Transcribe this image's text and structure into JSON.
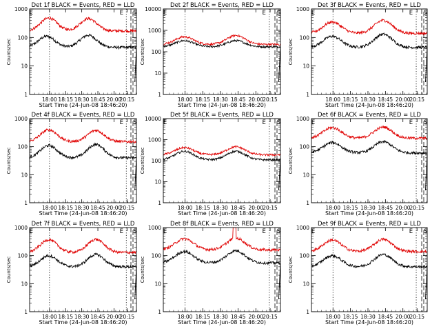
{
  "chart_data": [
    {
      "type": "line",
      "title": "Det 1f BLACK = Events, RED = LLD",
      "xlabel": "Start Time (24-Jun-08 18:46:20)",
      "ylabel": "Counts/sec",
      "ylim": [
        1,
        1000
      ],
      "yscale": "log",
      "x_tick_labels": [
        "18:00",
        "18:15",
        "18:30",
        "18:45",
        "20:00",
        "20:15"
      ],
      "y_tick_labels": [
        "1",
        "10",
        "100",
        "1000"
      ],
      "markers": [
        "E",
        "E",
        "S"
      ],
      "series": [
        {
          "color": "#000000",
          "level": 45,
          "peaks": [
            [
              0.16,
              110
            ],
            [
              0.55,
              120
            ]
          ]
        },
        {
          "color": "#e00000",
          "level": 170,
          "peaks": [
            [
              0.18,
              480
            ],
            [
              0.55,
              460
            ]
          ]
        }
      ]
    },
    {
      "type": "line",
      "title": "Det 2f BLACK = Events, RED = LLD",
      "xlabel": "Start Time (24-Jun-08 18:46:20)",
      "ylabel": "Counts/sec",
      "ylim": [
        1,
        10000
      ],
      "yscale": "log",
      "x_tick_labels": [
        "18:00",
        "18:15",
        "18:30",
        "18:45",
        "20:00",
        "20:15"
      ],
      "y_tick_labels": [
        "1",
        "10",
        "100",
        "1000",
        "10000"
      ],
      "markers": [
        "E",
        "E",
        "S"
      ],
      "series": [
        {
          "color": "#000000",
          "level": 170,
          "peaks": [
            [
              0.18,
              330
            ],
            [
              0.62,
              330
            ]
          ]
        },
        {
          "color": "#e00000",
          "level": 220,
          "peaks": [
            [
              0.18,
              500
            ],
            [
              0.62,
              580
            ]
          ]
        }
      ]
    },
    {
      "type": "line",
      "title": "Det 3f BLACK = Events, RED = LLD",
      "xlabel": "Start Time (24-Jun-08 18:46:20)",
      "ylabel": "Counts/sec",
      "ylim": [
        1,
        1000
      ],
      "yscale": "log",
      "x_tick_labels": [
        "18:00",
        "18:15",
        "18:30",
        "18:45",
        "20:00",
        "20:15"
      ],
      "y_tick_labels": [
        "1",
        "10",
        "100",
        "1000"
      ],
      "markers": [
        "E",
        "E",
        "S"
      ],
      "series": [
        {
          "color": "#000000",
          "level": 45,
          "peaks": [
            [
              0.18,
              110
            ],
            [
              0.62,
              130
            ]
          ]
        },
        {
          "color": "#e00000",
          "level": 140,
          "peaks": [
            [
              0.18,
              350
            ],
            [
              0.62,
              400
            ]
          ]
        }
      ]
    },
    {
      "type": "line",
      "title": "Det 4f BLACK = Events, RED = LLD",
      "xlabel": "Start Time (24-Jun-08 18:46:20)",
      "ylabel": "Counts/sec",
      "ylim": [
        1,
        1000
      ],
      "yscale": "log",
      "x_tick_labels": [
        "18:00",
        "18:15",
        "18:30",
        "18:45",
        "20:00",
        "20:15"
      ],
      "y_tick_labels": [
        "1",
        "10",
        "100",
        "1000"
      ],
      "markers": [
        "E",
        "E",
        "S"
      ],
      "series": [
        {
          "color": "#000000",
          "level": 40,
          "peaks": [
            [
              0.18,
              110
            ],
            [
              0.62,
              120
            ]
          ]
        },
        {
          "color": "#e00000",
          "level": 150,
          "peaks": [
            [
              0.18,
              400
            ],
            [
              0.62,
              380
            ]
          ]
        }
      ]
    },
    {
      "type": "line",
      "title": "Det 5f BLACK = Events, RED = LLD",
      "xlabel": "Start Time (24-Jun-08 18:46:20)",
      "ylabel": "Counts/sec",
      "ylim": [
        1,
        10000
      ],
      "yscale": "log",
      "x_tick_labels": [
        "18:00",
        "18:15",
        "18:30",
        "18:45",
        "20:00",
        "20:15"
      ],
      "y_tick_labels": [
        "1",
        "10",
        "100",
        "1000",
        "10000"
      ],
      "markers": [
        "E",
        "E",
        "S"
      ],
      "series": [
        {
          "color": "#000000",
          "level": 110,
          "peaks": [
            [
              0.18,
              280
            ],
            [
              0.62,
              280
            ]
          ]
        },
        {
          "color": "#e00000",
          "level": 190,
          "peaks": [
            [
              0.18,
              420
            ],
            [
              0.62,
              460
            ]
          ]
        }
      ]
    },
    {
      "type": "line",
      "title": "Det 6f BLACK = Events, RED = LLD",
      "xlabel": "Start Time (24-Jun-08 18:46:20)",
      "ylabel": "Counts/sec",
      "ylim": [
        1,
        1000
      ],
      "yscale": "log",
      "x_tick_labels": [
        "18:00",
        "18:15",
        "18:30",
        "18:45",
        "20:00",
        "20:15"
      ],
      "y_tick_labels": [
        "1",
        "10",
        "100",
        "1000"
      ],
      "markers": [
        "E",
        "E",
        "S"
      ],
      "series": [
        {
          "color": "#000000",
          "level": 60,
          "peaks": [
            [
              0.18,
              140
            ],
            [
              0.62,
              150
            ]
          ]
        },
        {
          "color": "#e00000",
          "level": 200,
          "peaks": [
            [
              0.18,
              480
            ],
            [
              0.62,
              500
            ]
          ]
        }
      ]
    },
    {
      "type": "line",
      "title": "Det 7f BLACK = Events, RED = LLD",
      "xlabel": "Start Time (24-Jun-08 18:46:20)",
      "ylabel": "Counts/sec",
      "ylim": [
        1,
        1000
      ],
      "yscale": "log",
      "x_tick_labels": [
        "18:00",
        "18:15",
        "18:30",
        "18:45",
        "20:00",
        "20:15"
      ],
      "y_tick_labels": [
        "1",
        "10",
        "100",
        "1000"
      ],
      "markers": [
        "E",
        "E",
        "S"
      ],
      "series": [
        {
          "color": "#000000",
          "level": 40,
          "peaks": [
            [
              0.18,
              100
            ],
            [
              0.62,
              110
            ]
          ]
        },
        {
          "color": "#e00000",
          "level": 130,
          "peaks": [
            [
              0.18,
              370
            ],
            [
              0.62,
              380
            ]
          ]
        }
      ]
    },
    {
      "type": "line",
      "title": "Det 8f BLACK = Events, RED = LLD",
      "xlabel": "Start Time (24-Jun-08 18:46:20)",
      "ylabel": "Counts/sec",
      "ylim": [
        1,
        1000
      ],
      "yscale": "log",
      "x_tick_labels": [
        "18:00",
        "18:15",
        "18:30",
        "18:45",
        "20:00",
        "20:15"
      ],
      "y_tick_labels": [
        "1",
        "10",
        "100",
        "1000"
      ],
      "markers": [
        "E",
        "E",
        "S"
      ],
      "series": [
        {
          "color": "#000000",
          "level": 55,
          "peaks": [
            [
              0.18,
              140
            ],
            [
              0.62,
              150
            ]
          ]
        },
        {
          "color": "#e00000",
          "level": 160,
          "peaks": [
            [
              0.18,
              400
            ],
            [
              0.62,
              420
            ]
          ]
        }
      ],
      "spike": {
        "start": 0.595,
        "end": 0.62,
        "value": 1000
      }
    },
    {
      "type": "line",
      "title": "Det 9f BLACK = Events, RED = LLD",
      "xlabel": "Start Time (24-Jun-08 18:46:20)",
      "ylabel": "Counts/sec",
      "ylim": [
        1,
        1000
      ],
      "yscale": "log",
      "x_tick_labels": [
        "18:00",
        "18:15",
        "18:30",
        "18:45",
        "20:00",
        "20:15"
      ],
      "y_tick_labels": [
        "1",
        "10",
        "100",
        "1000"
      ],
      "markers": [
        "E",
        "E",
        "S"
      ],
      "series": [
        {
          "color": "#000000",
          "level": 40,
          "peaks": [
            [
              0.18,
              100
            ],
            [
              0.62,
              110
            ]
          ]
        },
        {
          "color": "#e00000",
          "level": 140,
          "peaks": [
            [
              0.18,
              360
            ],
            [
              0.62,
              380
            ]
          ]
        }
      ]
    }
  ]
}
